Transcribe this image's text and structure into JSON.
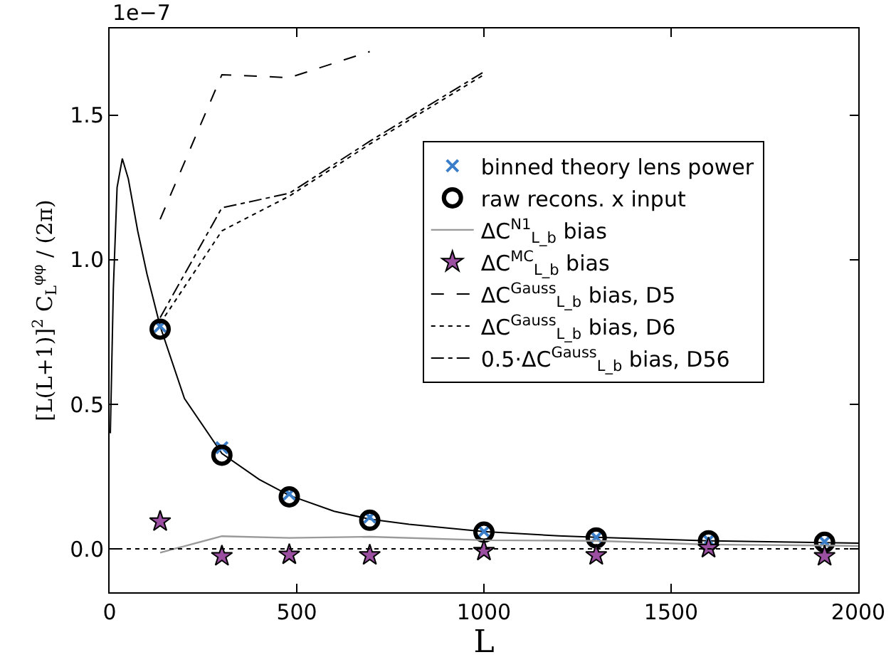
{
  "chart_data": {
    "type": "scatter",
    "xlabel": "L",
    "ylabel": "[L(L+1)]$^{2}$ C$_{L}$$^{φφ}$ / (2π)",
    "annotations": [
      "1e−7"
    ],
    "xlim": [
      0,
      2000
    ],
    "xticks": [
      0,
      500,
      1000,
      1500,
      2000
    ],
    "ylim": [
      -0.15,
      1.8
    ],
    "yticks": [
      {
        "value": 0,
        "label": "0.0"
      },
      0.5,
      {
        "value": 1,
        "label": "1.0"
      },
      1.5
    ],
    "grid": false,
    "legend": "right",
    "ref_lines": [
      {
        "axis": "y",
        "value": 0,
        "color": "#000000",
        "line_style": "dotted"
      }
    ],
    "series": [
      {
        "type": "line",
        "color": "#000000",
        "line_style": "solid",
        "x": [
          2,
          10,
          20,
          34,
          50,
          75,
          100,
          135,
          200,
          300,
          400,
          480,
          600,
          695,
          800,
          1000,
          1200,
          1300,
          1600,
          1910,
          2000
        ],
        "values": [
          0.4,
          0.9,
          1.25,
          1.35,
          1.28,
          1.1,
          0.95,
          0.77,
          0.52,
          0.33,
          0.24,
          0.185,
          0.13,
          0.103,
          0.085,
          0.06,
          0.045,
          0.04,
          0.028,
          0.022,
          0.02
        ]
      },
      {
        "name": "binned theory lens power",
        "marker": "cross",
        "color": "#3a7dc9",
        "x": [
          135,
          300,
          480,
          695,
          1000,
          1300,
          1600,
          1910
        ],
        "values": [
          0.77,
          0.35,
          0.19,
          0.11,
          0.06,
          0.04,
          0.03,
          0.025
        ]
      },
      {
        "name": "raw recons. x input",
        "marker": "circle",
        "color": "#000000",
        "x": [
          135,
          300,
          480,
          695,
          1000,
          1300,
          1600,
          1910
        ],
        "values": [
          0.76,
          0.324,
          0.18,
          0.099,
          0.058,
          0.038,
          0.028,
          0.023
        ]
      },
      {
        "name": "ΔC$^{N1}$$_{L_b}$ bias",
        "type": "line",
        "line_style": "solid",
        "color": "#999999",
        "x": [
          135,
          300,
          480,
          695,
          1000,
          1300,
          1600,
          1910,
          2000
        ],
        "values": [
          -0.013,
          0.044,
          0.038,
          0.042,
          0.03,
          0.028,
          0.015,
          0.012,
          0.01
        ]
      },
      {
        "name": "ΔC$^{MC}$$_{L_b}$ bias",
        "marker": "star",
        "color": "#9b4fa0",
        "x": [
          135,
          300,
          480,
          695,
          1000,
          1300,
          1600,
          1910
        ],
        "values": [
          0.095,
          -0.025,
          -0.02,
          -0.022,
          -0.007,
          -0.022,
          0.003,
          -0.025
        ]
      },
      {
        "name": "ΔC$^{Gauss}$$_{L_b}$ bias, D5",
        "type": "line",
        "line_style": "dashed",
        "color": "#000000",
        "x": [
          135,
          300,
          480,
          695
        ],
        "values": [
          1.14,
          1.64,
          1.63,
          1.72
        ]
      },
      {
        "name": "ΔC$^{Gauss}$$_{L_b}$ bias, D6",
        "type": "line",
        "line_style": "dotted",
        "color": "#000000",
        "x": [
          135,
          300,
          480,
          695,
          1000
        ],
        "values": [
          0.78,
          1.1,
          1.22,
          1.4,
          1.64
        ]
      },
      {
        "name": "0.5·ΔC$^{Gauss}$$_{L_b}$ bias, D56",
        "type": "line",
        "line_style": "dashdot",
        "color": "#000000",
        "x": [
          135,
          300,
          480,
          695,
          1000
        ],
        "values": [
          0.8,
          1.18,
          1.23,
          1.41,
          1.65
        ]
      }
    ]
  }
}
